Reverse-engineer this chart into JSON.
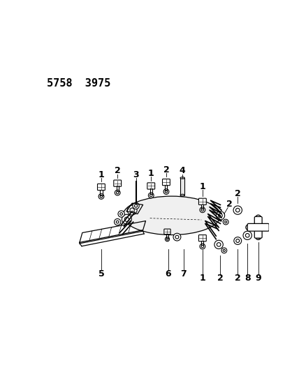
{
  "title": "5758  3975",
  "bg_color": "#ffffff",
  "line_color": "#000000",
  "title_fontsize": 11,
  "label_fontsize": 9,
  "figsize": [
    4.28,
    5.33
  ],
  "dpi": 100
}
